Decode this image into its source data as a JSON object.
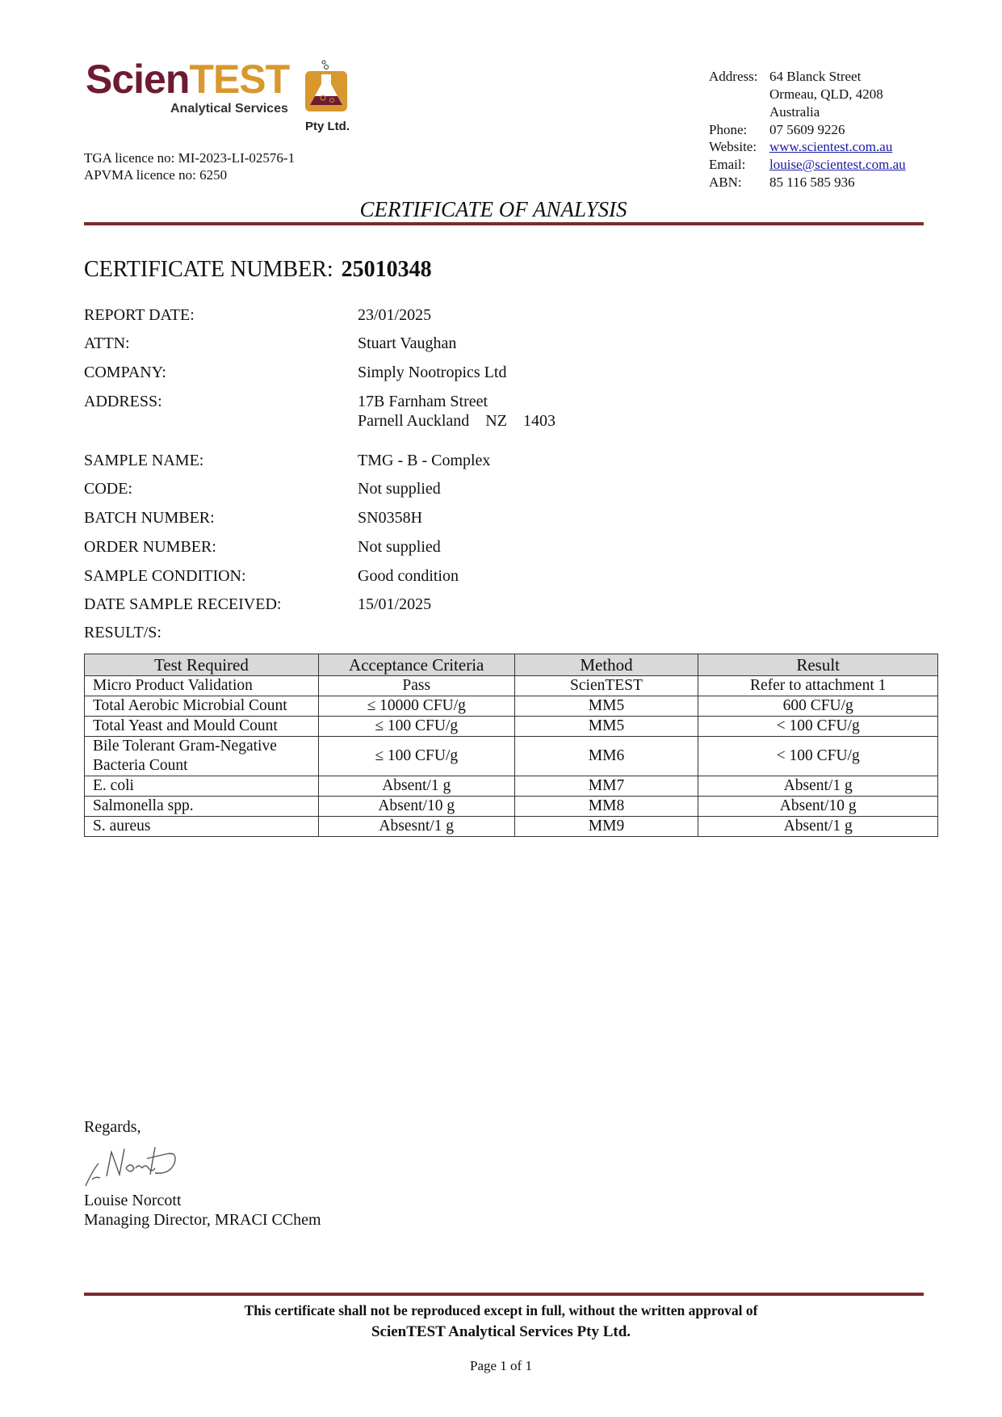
{
  "logo": {
    "part1": "Scien",
    "part2": "TEST",
    "sub": "Analytical Services",
    "pty": "Pty Ltd.",
    "colors": {
      "maroon": "#6e1b32",
      "gold": "#d8982e"
    }
  },
  "licences": {
    "tga": "TGA licence no: MI-2023-LI-02576-1",
    "apvma": "APVMA licence no: 6250"
  },
  "contact": {
    "address_label": "Address:",
    "address_lines": [
      "64 Blanck Street",
      "Ormeau, QLD, 4208",
      "Australia"
    ],
    "phone_label": "Phone:",
    "phone": "07 5609 9226",
    "website_label": "Website:",
    "website": "www.scientest.com.au",
    "email_label": "Email:",
    "email": "louise@scientest.com.au",
    "abn_label": "ABN:",
    "abn": "85 116 585 936"
  },
  "title": "CERTIFICATE OF ANALYSIS",
  "certificate": {
    "label": "CERTIFICATE NUMBER:",
    "number": "25010348"
  },
  "fields": [
    {
      "label": "REPORT DATE:",
      "value": "23/01/2025"
    },
    {
      "label": "ATTN:",
      "value": "Stuart Vaughan"
    },
    {
      "label": "COMPANY:",
      "value": "Simply Nootropics Ltd"
    },
    {
      "label": "ADDRESS:",
      "value": "17B Farnham Street",
      "value2": "Parnell Auckland    NZ    1403"
    },
    {
      "label": "SAMPLE NAME:",
      "value": "TMG - B - Complex"
    },
    {
      "label": "CODE:",
      "value": "Not supplied"
    },
    {
      "label": "BATCH NUMBER:",
      "value": "SN0358H"
    },
    {
      "label": "ORDER NUMBER:",
      "value": "Not supplied"
    },
    {
      "label": "SAMPLE CONDITION:",
      "value": "Good condition"
    },
    {
      "label": "DATE SAMPLE RECEIVED:",
      "value": "15/01/2025"
    },
    {
      "label": "RESULT/S:",
      "value": ""
    }
  ],
  "results": {
    "headers": [
      "Test Required",
      "Acceptance Criteria",
      "Method",
      "Result"
    ],
    "rows": [
      [
        "Micro Product Validation",
        "Pass",
        "ScienTEST",
        "Refer to attachment 1"
      ],
      [
        "Total Aerobic Microbial Count",
        "≤ 10000 CFU/g",
        "MM5",
        "600 CFU/g"
      ],
      [
        "Total Yeast and Mould Count",
        "≤ 100 CFU/g",
        "MM5",
        "< 100 CFU/g"
      ],
      [
        "Bile Tolerant Gram-Negative Bacteria Count",
        "≤ 100 CFU/g",
        "MM6",
        "< 100 CFU/g"
      ],
      [
        "E. coli",
        "Absent/1 g",
        "MM7",
        "Absent/1 g"
      ],
      [
        "Salmonella spp.",
        "Absent/10 g",
        "MM8",
        "Absent/10 g"
      ],
      [
        "S. aureus",
        "Absesnt/1 g",
        "MM9",
        "Absent/1 g"
      ]
    ]
  },
  "signoff": {
    "regards": "Regards,",
    "signature": "L Norcott",
    "name": "Louise Norcott",
    "title": "Managing Director, MRACI CChem"
  },
  "footer": {
    "line1": "This certificate shall not be reproduced except in full, without the written approval of",
    "line2": "ScienTEST Analytical Services Pty Ltd.",
    "page": "Page 1 of 1"
  },
  "rule_color": "#7a2c2a"
}
